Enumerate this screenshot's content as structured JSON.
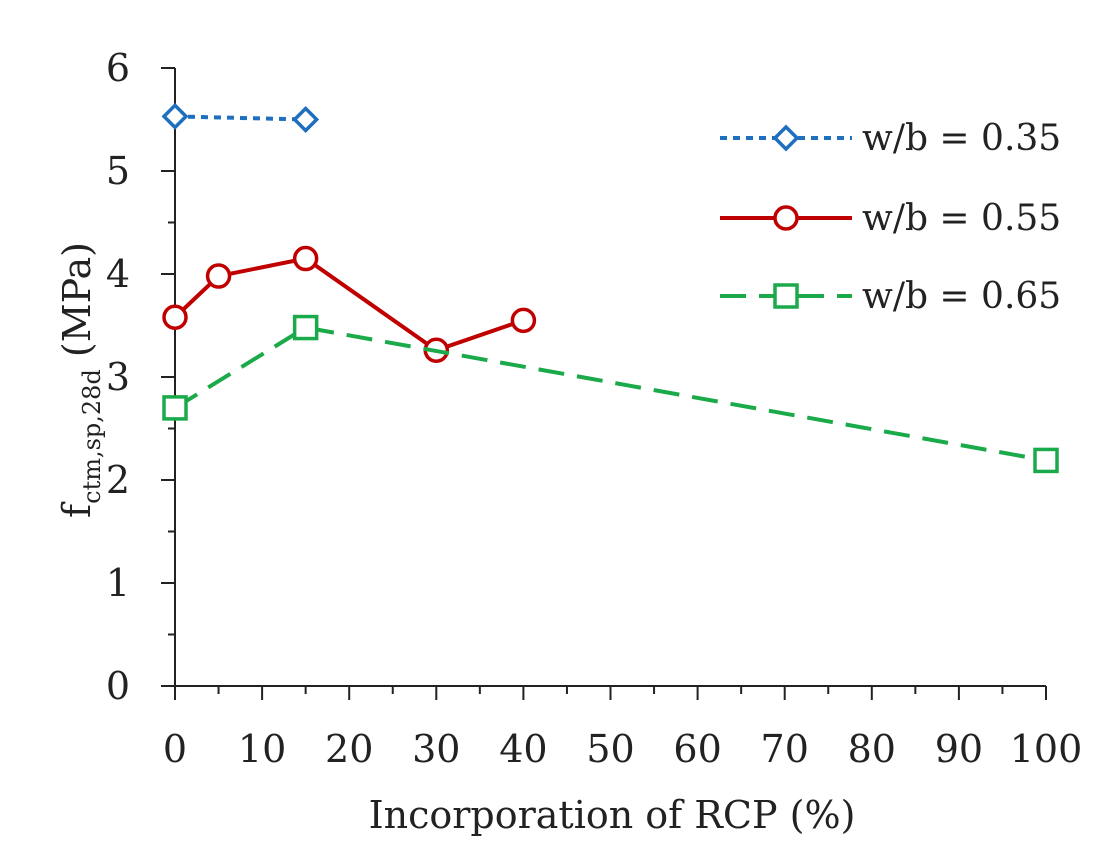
{
  "chart_data": {
    "type": "line",
    "xlabel": "Incorporation of RCP (%)",
    "ylabel_main": "f",
    "ylabel_sub": "ctm,sp,28d",
    "ylabel_unit": " (MPa)",
    "xlim": [
      0,
      100
    ],
    "ylim": [
      0,
      6
    ],
    "x_ticks": [
      0,
      10,
      20,
      30,
      40,
      50,
      60,
      70,
      80,
      90,
      100
    ],
    "y_ticks": [
      0,
      1,
      2,
      3,
      4,
      5,
      6
    ],
    "grid": false,
    "legend_position": "top-right",
    "series": [
      {
        "name": "w/b = 0.35",
        "color": "#1f6fbf",
        "dash": "short-dash",
        "marker": "diamond",
        "x": [
          0,
          15
        ],
        "y": [
          5.53,
          5.5
        ]
      },
      {
        "name": "w/b = 0.55",
        "color": "#c00000",
        "dash": "solid",
        "marker": "circle",
        "x": [
          0,
          5,
          15,
          30,
          40
        ],
        "y": [
          3.58,
          3.98,
          4.15,
          3.26,
          3.55
        ]
      },
      {
        "name": "w/b = 0.65",
        "color": "#1aaa4a",
        "dash": "long-dash",
        "marker": "square",
        "x": [
          0,
          15,
          100
        ],
        "y": [
          2.7,
          3.48,
          2.19
        ]
      }
    ]
  }
}
